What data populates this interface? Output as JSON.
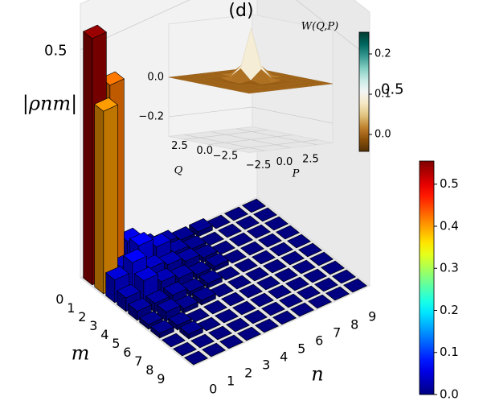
{
  "chart_data": [
    {
      "type": "bar3d",
      "title": "(d)",
      "zlabel": "|ρnm|",
      "xlabel": "m",
      "ylabel": "n",
      "mticks": [
        0,
        1,
        2,
        3,
        4,
        5,
        6,
        7,
        8,
        9
      ],
      "nticks": [
        0,
        1,
        2,
        3,
        4,
        5,
        6,
        7,
        8,
        9
      ],
      "zlim": [
        0,
        0.6
      ],
      "zticks": [
        0.5
      ],
      "values": [
        [
          0.54,
          0.42,
          0.06,
          0.03,
          0.02,
          0.01,
          0.01,
          0.0,
          0.0,
          0.0
        ],
        [
          0.4,
          0.04,
          0.07,
          0.05,
          0.02,
          0.01,
          0.0,
          0.0,
          0.0,
          0.0
        ],
        [
          0.05,
          0.07,
          0.04,
          0.03,
          0.02,
          0.01,
          0.0,
          0.0,
          0.0,
          0.0
        ],
        [
          0.03,
          0.05,
          0.03,
          0.02,
          0.01,
          0.01,
          0.0,
          0.0,
          0.0,
          0.0
        ],
        [
          0.02,
          0.02,
          0.02,
          0.01,
          0.01,
          0.0,
          0.0,
          0.0,
          0.0,
          0.0
        ],
        [
          0.01,
          0.02,
          0.01,
          0.01,
          0.0,
          0.0,
          0.0,
          0.0,
          0.0,
          0.0
        ],
        [
          0.01,
          0.01,
          0.0,
          0.0,
          0.0,
          0.0,
          0.0,
          0.0,
          0.0,
          0.0
        ],
        [
          0.0,
          0.01,
          0.0,
          0.0,
          0.0,
          0.0,
          0.0,
          0.0,
          0.0,
          0.0
        ],
        [
          0.0,
          0.0,
          0.0,
          0.0,
          0.0,
          0.0,
          0.0,
          0.0,
          0.0,
          0.0
        ],
        [
          0.0,
          0.0,
          0.0,
          0.0,
          0.0,
          0.0,
          0.0,
          0.0,
          0.0,
          0.0
        ]
      ],
      "colormap": "jet",
      "colorbar_lim": [
        0,
        0.555
      ],
      "colorbar_ticks": [
        {
          "value": 0,
          "label": "0.0"
        },
        0.1,
        0.2,
        0.3,
        0.4,
        0.5
      ]
    },
    {
      "type": "surface3d",
      "zlabel": "W(Q,P)",
      "xlabel": "Q",
      "ylabel": "P",
      "x": [
        -4,
        -3,
        -2,
        -1,
        0,
        1,
        2,
        3,
        4
      ],
      "y": [
        -4,
        -3,
        -2,
        -1,
        0,
        1,
        2,
        3,
        4
      ],
      "values": [
        [
          0,
          0,
          0,
          0,
          0,
          0,
          0,
          0,
          0
        ],
        [
          0,
          0,
          0,
          0,
          0,
          0,
          0,
          0,
          0
        ],
        [
          0,
          0,
          0,
          0,
          0,
          0,
          0,
          0,
          0
        ],
        [
          0,
          0,
          0,
          0,
          -0.01,
          -0.01,
          0,
          0,
          0
        ],
        [
          0,
          0,
          0,
          -0.01,
          0,
          0.05,
          0,
          0,
          0
        ],
        [
          0,
          0,
          0,
          -0.01,
          0.05,
          0.25,
          0.05,
          0,
          0
        ],
        [
          0,
          0,
          0,
          0,
          0,
          0.05,
          0,
          0,
          0
        ],
        [
          0,
          0,
          0,
          0,
          0,
          0,
          0,
          0,
          0
        ],
        [
          0,
          0,
          0,
          0,
          0,
          0,
          0,
          0,
          0
        ]
      ],
      "zlim": [
        -0.3,
        0.27
      ],
      "zticks": [
        {
          "value": 0,
          "label": "0.0"
        },
        {
          "value": -0.2,
          "label": "−0.2"
        }
      ],
      "xticks": [
        2.5,
        {
          "value": 0,
          "label": "0.0"
        },
        {
          "value": -2.5,
          "label": "−2.5"
        }
      ],
      "yticks": [
        {
          "value": -2.5,
          "label": "−2.5"
        },
        {
          "value": 0,
          "label": "0.0"
        },
        2.5
      ],
      "colormap": "BrBG",
      "colorbar_lim": [
        -0.042,
        0.254
      ],
      "colorbar_ticks": [
        {
          "value": 0,
          "label": "0.0"
        },
        0.1,
        0.2
      ]
    }
  ]
}
